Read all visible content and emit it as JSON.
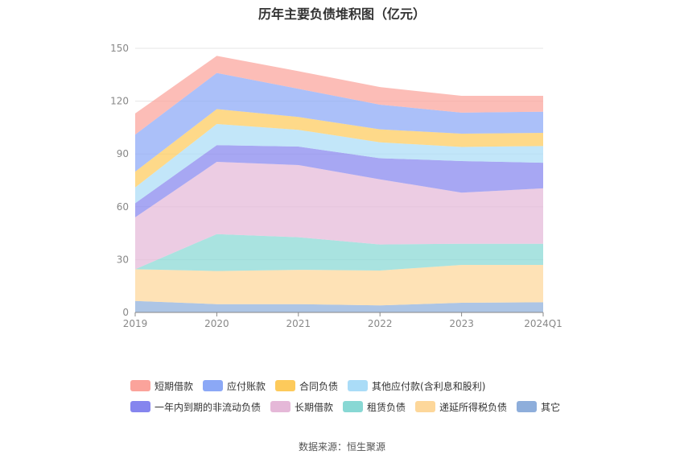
{
  "title": "历年主要负债堆积图（亿元）",
  "source": "数据来源：恒生聚源",
  "chart_data": {
    "type": "area",
    "stacked": true,
    "categories": [
      "2019",
      "2020",
      "2021",
      "2022",
      "2023",
      "2024Q1"
    ],
    "ylim": [
      0,
      150
    ],
    "yticks": [
      0,
      30,
      60,
      90,
      120,
      150
    ],
    "grid": true,
    "legend_position": "bottom",
    "series": [
      {
        "name": "其它",
        "color": "#8eaedb",
        "values": [
          6.5,
          4.7,
          4.7,
          4.0,
          5.5,
          5.8
        ]
      },
      {
        "name": "递延所得税负债",
        "color": "#fdd79a",
        "values": [
          18.0,
          18.8,
          19.5,
          19.8,
          21.5,
          21.2
        ]
      },
      {
        "name": "租赁负债",
        "color": "#88d8d4",
        "values": [
          0.0,
          21.0,
          18.5,
          14.8,
          12.0,
          12.0
        ]
      },
      {
        "name": "长期借款",
        "color": "#e5b8d8",
        "values": [
          29.5,
          41.0,
          41.0,
          37.0,
          29.0,
          31.5
        ]
      },
      {
        "name": "一年内到期的非流动负债",
        "color": "#8585ee",
        "values": [
          8.0,
          9.5,
          10.5,
          12.0,
          18.0,
          14.5
        ]
      },
      {
        "name": "其他应付款(含利息和股利)",
        "color": "#aadcf7",
        "values": [
          9.0,
          12.0,
          9.5,
          9.0,
          8.0,
          9.5
        ]
      },
      {
        "name": "合同负债",
        "color": "#fdca5b",
        "values": [
          9.0,
          8.5,
          7.3,
          7.4,
          7.5,
          7.5
        ]
      },
      {
        "name": "应付账款",
        "color": "#8ba8f6",
        "values": [
          21.0,
          20.5,
          16.0,
          14.0,
          12.0,
          12.0
        ]
      },
      {
        "name": "短期借款",
        "color": "#fba39b",
        "values": [
          12.0,
          9.7,
          10.0,
          10.0,
          9.5,
          9.0
        ]
      }
    ]
  },
  "legend": {
    "rows": [
      [
        {
          "name": "短期借款",
          "color": "#fba39b"
        },
        {
          "name": "应付账款",
          "color": "#8ba8f6"
        },
        {
          "name": "合同负债",
          "color": "#fdca5b"
        },
        {
          "name": "其他应付款(含利息和股利)",
          "color": "#aadcf7"
        }
      ],
      [
        {
          "name": "一年内到期的非流动负债",
          "color": "#8585ee"
        },
        {
          "name": "长期借款",
          "color": "#e5b8d8"
        },
        {
          "name": "租赁负债",
          "color": "#88d8d4"
        },
        {
          "name": "递延所得税负债",
          "color": "#fdd79a"
        },
        {
          "name": "其它",
          "color": "#8eaedb"
        }
      ]
    ]
  }
}
